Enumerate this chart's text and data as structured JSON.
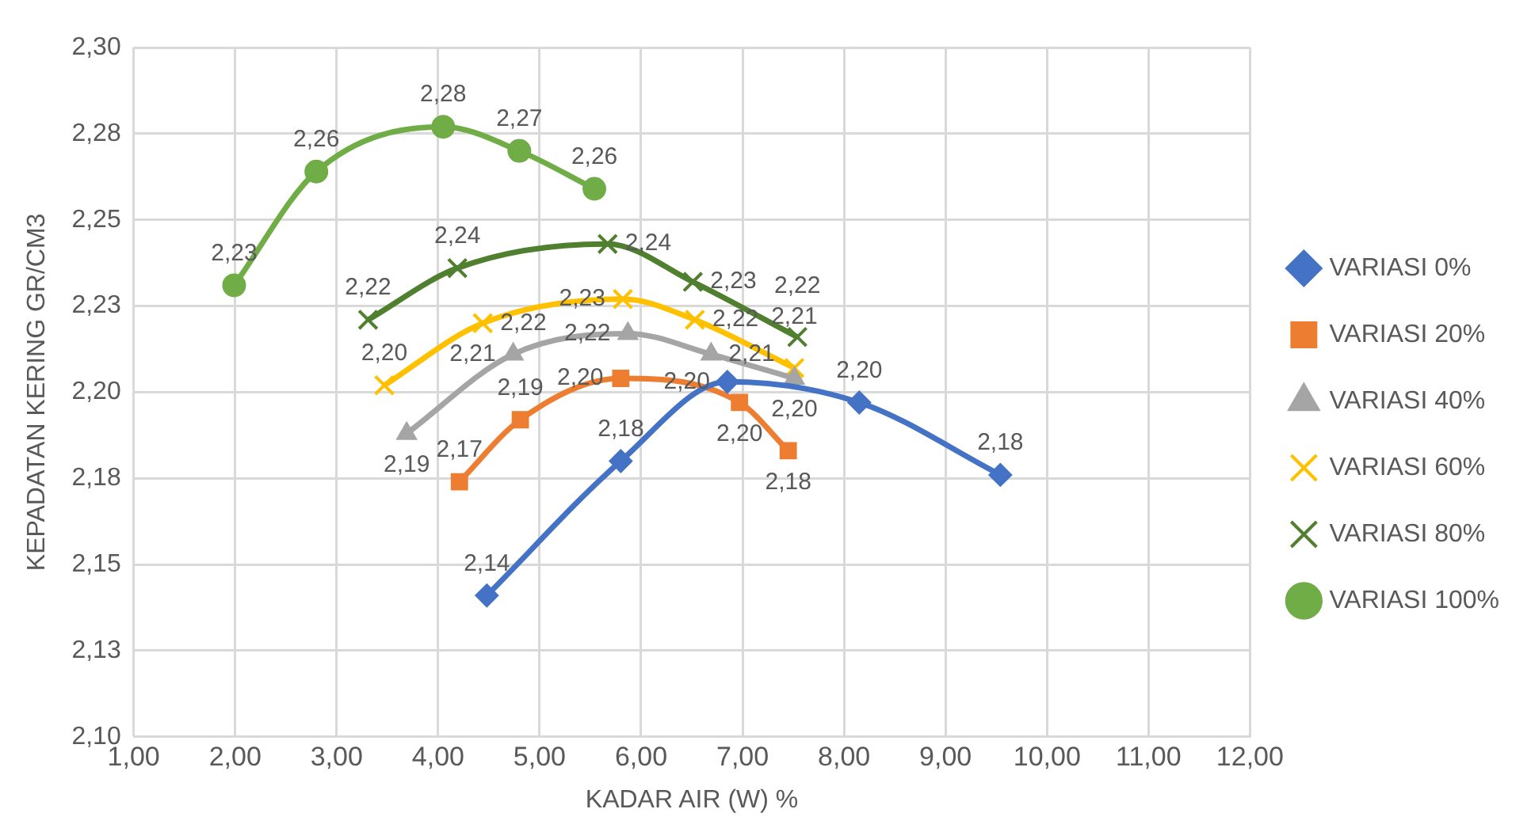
{
  "chart_data": {
    "type": "line",
    "xlabel": "KADAR AIR (W) %",
    "ylabel": "KEPADATAN KERING GR/CM3",
    "xlim": [
      1,
      12
    ],
    "xticks": [
      {
        "value": 1,
        "label": "1,00"
      },
      {
        "value": 2,
        "label": "2,00"
      },
      {
        "value": 3,
        "label": "3,00"
      },
      {
        "value": 4,
        "label": "4,00"
      },
      {
        "value": 5,
        "label": "5,00"
      },
      {
        "value": 6,
        "label": "6,00"
      },
      {
        "value": 7,
        "label": "7,00"
      },
      {
        "value": 8,
        "label": "8,00"
      },
      {
        "value": 9,
        "label": "9,00"
      },
      {
        "value": 10,
        "label": "10,00"
      },
      {
        "value": 11,
        "label": "11,00"
      },
      {
        "value": 12,
        "label": "12,00"
      }
    ],
    "ylim": [
      2.1,
      2.3
    ],
    "yticks": [
      {
        "value": 2.1,
        "label": "2,10"
      },
      {
        "value": 2.125,
        "label": "2,13"
      },
      {
        "value": 2.15,
        "label": "2,15"
      },
      {
        "value": 2.175,
        "label": "2,18"
      },
      {
        "value": 2.2,
        "label": "2,20"
      },
      {
        "value": 2.225,
        "label": "2,23"
      },
      {
        "value": 2.25,
        "label": "2,25"
      },
      {
        "value": 2.275,
        "label": "2,28"
      },
      {
        "value": 2.3,
        "label": "2,30"
      }
    ],
    "grid": true,
    "legend": "right",
    "series": [
      {
        "name": "VARIASI 0%",
        "color": "#4472c4",
        "marker": "diamond",
        "x": [
          4.48,
          5.8,
          6.85,
          8.15,
          9.54
        ],
        "values": [
          2.141,
          2.18,
          2.203,
          2.197,
          2.176
        ],
        "value_labels": [
          "2,14",
          "2,18",
          "2,20",
          "2,20",
          "2,18"
        ]
      },
      {
        "name": "VARIASI 20%",
        "color": "#ed7d31",
        "marker": "square",
        "x": [
          4.21,
          4.81,
          5.8,
          6.97,
          7.45
        ],
        "values": [
          2.174,
          2.192,
          2.204,
          2.197,
          2.183
        ],
        "value_labels": [
          "2,17",
          "2,19",
          "2,20",
          "2,20",
          "2,18"
        ]
      },
      {
        "name": "VARIASI 40%",
        "color": "#a5a5a5",
        "marker": "triangle",
        "x": [
          3.69,
          4.74,
          5.87,
          6.69,
          7.51
        ],
        "values": [
          2.188,
          2.211,
          2.217,
          2.211,
          2.204
        ],
        "value_labels": [
          "2,19",
          "2,21",
          "2,22",
          "2,21",
          "2,20"
        ]
      },
      {
        "name": "VARIASI 60%",
        "color": "#ffc000",
        "marker": "cross",
        "x": [
          3.47,
          4.44,
          5.82,
          6.53,
          7.51
        ],
        "values": [
          2.202,
          2.22,
          2.227,
          2.221,
          2.207
        ],
        "value_labels": [
          "2,20",
          "2,22",
          "2,23",
          "2,22",
          "2,21"
        ]
      },
      {
        "name": "VARIASI 80%",
        "color": "#4f7f2f",
        "marker": "cross",
        "x": [
          3.31,
          4.19,
          5.67,
          6.51,
          7.54
        ],
        "values": [
          2.221,
          2.236,
          2.243,
          2.232,
          2.216
        ],
        "value_labels": [
          "2,22",
          "2,24",
          "2,24",
          "2,23",
          "2,22"
        ]
      },
      {
        "name": "VARIASI 100%",
        "color": "#70ad47",
        "marker": "circle",
        "x": [
          1.99,
          2.8,
          4.05,
          4.8,
          5.54
        ],
        "values": [
          2.231,
          2.264,
          2.277,
          2.27,
          2.259
        ],
        "value_labels": [
          "2,23",
          "2,26",
          "2,28",
          "2,27",
          "2,26"
        ]
      }
    ]
  }
}
